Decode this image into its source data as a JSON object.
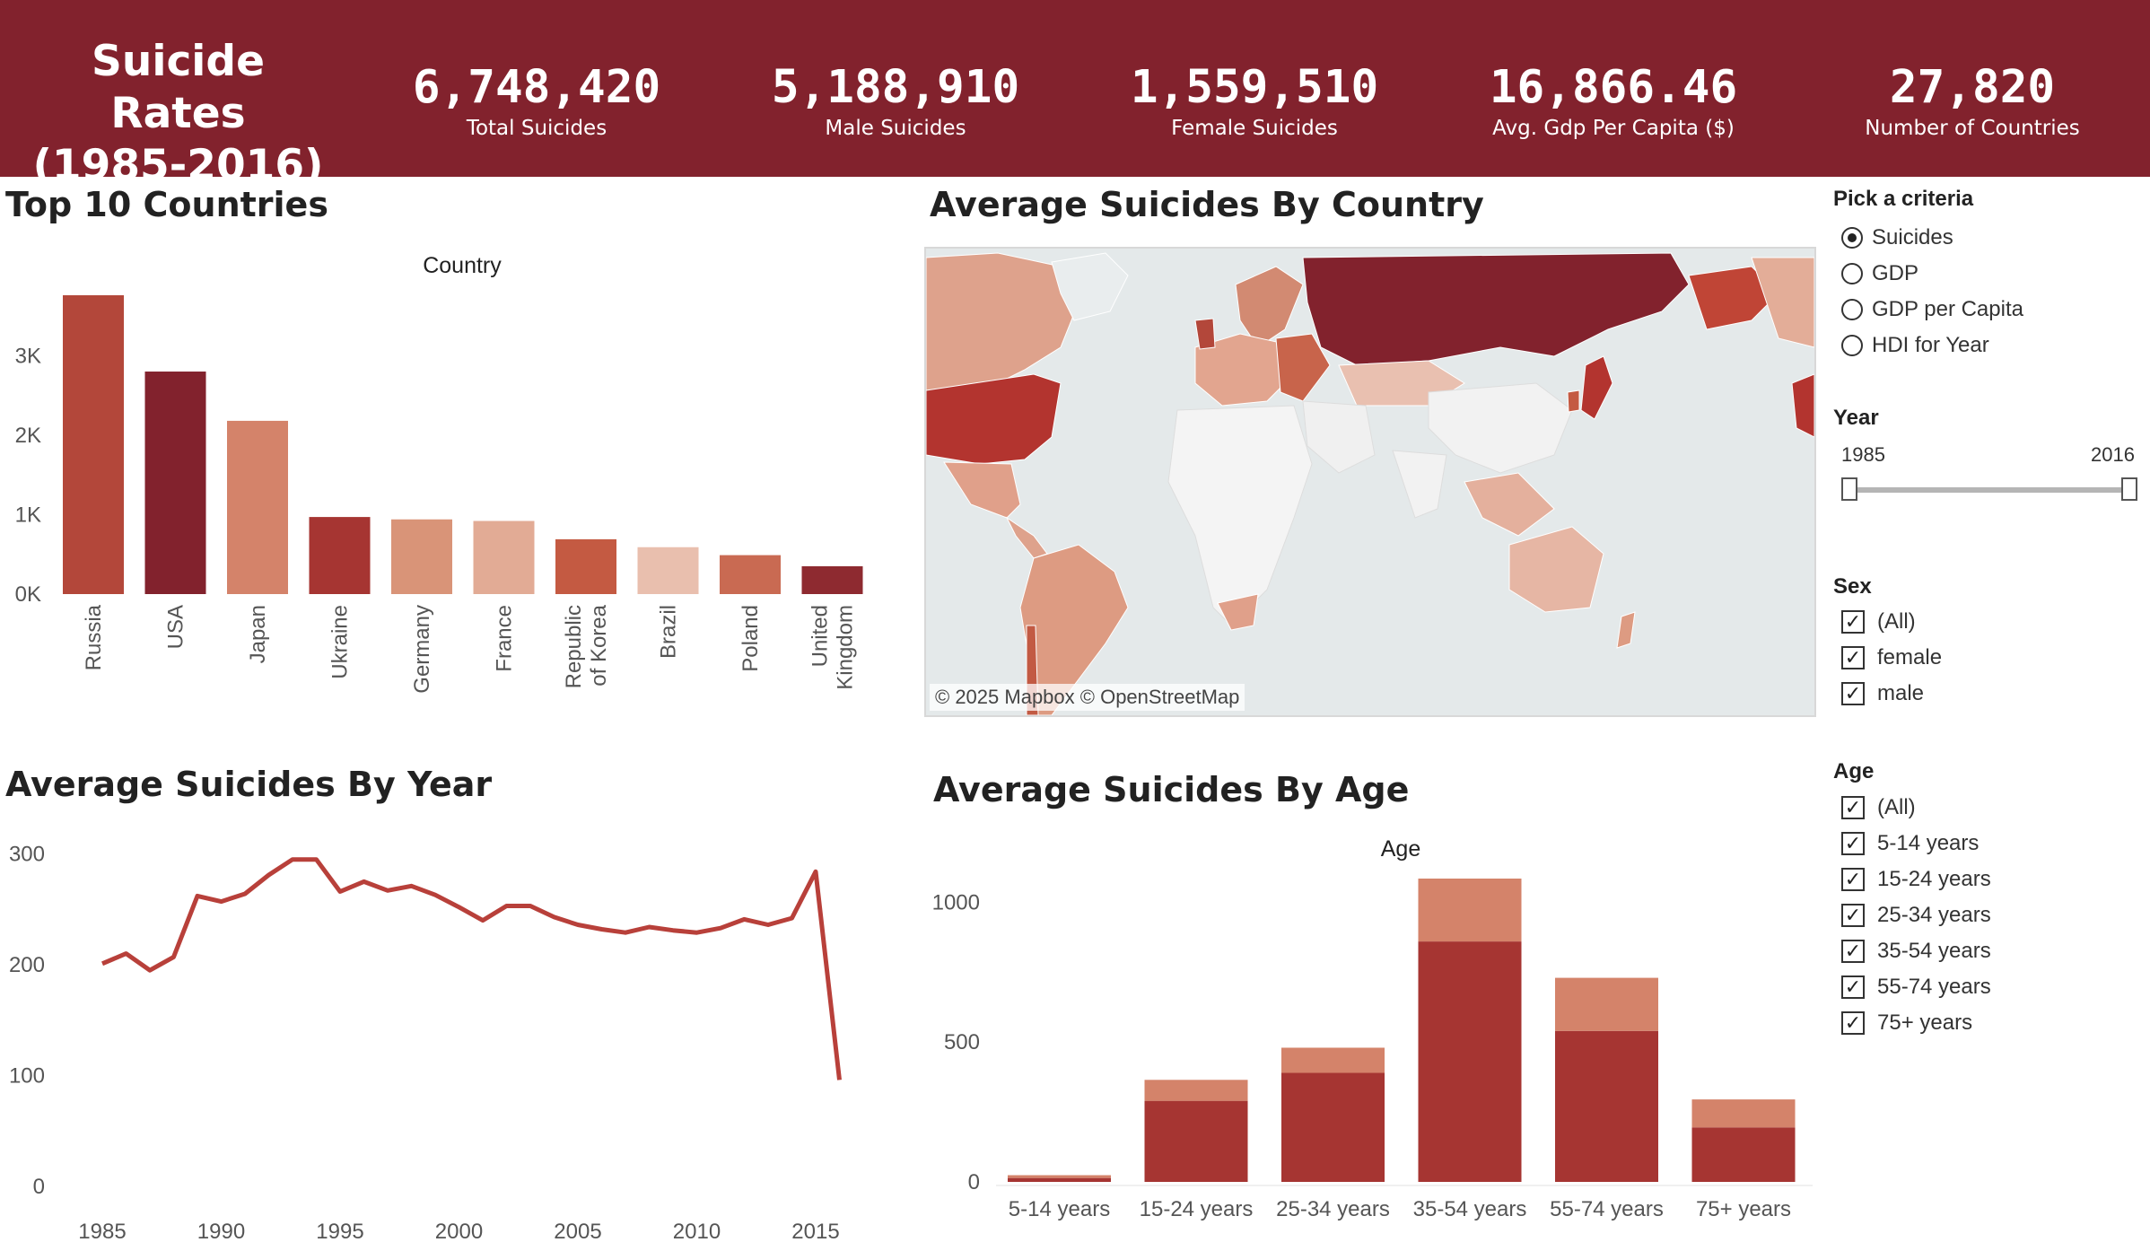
{
  "header": {
    "title_line1": "Suicide Rates",
    "title_line2": "(1985-2016)",
    "kpis": [
      {
        "value": "6,748,420",
        "label": "Total Suicides"
      },
      {
        "value": "5,188,910",
        "label": "Male Suicides"
      },
      {
        "value": "1,559,510",
        "label": "Female Suicides"
      },
      {
        "value": "16,866.46",
        "label": "Avg. Gdp Per Capita ($)"
      },
      {
        "value": "27,820",
        "label": "Number of Countries"
      }
    ]
  },
  "colors": {
    "header_bg": "#82222d",
    "dark_red": "#82222d",
    "red": "#a63532",
    "line": "#b8403a",
    "age_upper": "#d4836a"
  },
  "top10": {
    "title": "Top 10 Countries",
    "chart_data": {
      "type": "bar",
      "title": "Country",
      "categories": [
        "Russia",
        "USA",
        "Japan",
        "Ukraine",
        "Germany",
        "France",
        "Republic of Korea",
        "Brazil",
        "Poland",
        "United Kingdom"
      ],
      "category_lines": [
        [
          "Russia"
        ],
        [
          "USA"
        ],
        [
          "Japan"
        ],
        [
          "Ukraine"
        ],
        [
          "Germany"
        ],
        [
          "France"
        ],
        [
          "Republic",
          "of Korea"
        ],
        [
          "Brazil"
        ],
        [
          "Poland"
        ],
        [
          "United",
          "Kingdom"
        ]
      ],
      "values": [
        3760,
        2800,
        2180,
        970,
        940,
        920,
        690,
        590,
        490,
        350
      ],
      "colors": [
        "#b3473a",
        "#82222d",
        "#d4836a",
        "#a63532",
        "#d99478",
        "#e2ab95",
        "#c45a42",
        "#e9bfae",
        "#c96a52",
        "#8e2a30"
      ],
      "yticks": [
        0,
        1000,
        2000,
        3000
      ],
      "ytick_labels": [
        "0K",
        "1K",
        "2K",
        "3K"
      ]
    }
  },
  "map": {
    "title": "Average Suicides By Country",
    "attribution": "© 2025 Mapbox  © OpenStreetMap"
  },
  "by_year": {
    "title": "Average Suicides By Year",
    "chart_data": {
      "type": "line",
      "x": [
        1985,
        1986,
        1987,
        1988,
        1989,
        1990,
        1991,
        1992,
        1993,
        1994,
        1995,
        1996,
        1997,
        1998,
        1999,
        2000,
        2001,
        2002,
        2003,
        2004,
        2005,
        2006,
        2007,
        2008,
        2009,
        2010,
        2011,
        2012,
        2013,
        2014,
        2015,
        2016
      ],
      "y": [
        201,
        210,
        195,
        207,
        262,
        257,
        264,
        281,
        295,
        295,
        266,
        275,
        267,
        271,
        263,
        252,
        240,
        253,
        253,
        243,
        236,
        232,
        229,
        234,
        231,
        229,
        233,
        241,
        236,
        242,
        284,
        96
      ],
      "xticks": [
        1985,
        1990,
        1995,
        2000,
        2005,
        2010,
        2015
      ],
      "yticks": [
        0,
        100,
        200,
        300
      ],
      "xlim": [
        1984,
        2017
      ],
      "ylim": [
        0,
        300
      ]
    }
  },
  "by_age": {
    "title": "Average Suicides By Age",
    "chart_data": {
      "type": "bar",
      "title": "Age",
      "categories": [
        "5-14 years",
        "15-24 years",
        "25-34 years",
        "35-54 years",
        "55-74 years",
        "75+ years"
      ],
      "series": [
        {
          "values": [
            14,
            290,
            390,
            860,
            540,
            195
          ]
        },
        {
          "values": [
            10,
            75,
            90,
            225,
            190,
            100
          ]
        }
      ],
      "yticks": [
        0,
        500,
        1000
      ],
      "ylim": [
        0,
        1130
      ]
    }
  },
  "filters": {
    "criteria": {
      "heading": "Pick a criteria",
      "options": [
        "Suicides",
        "GDP",
        "GDP per Capita",
        "HDI for Year"
      ],
      "selected": "Suicides"
    },
    "year": {
      "heading": "Year",
      "min": "1985",
      "max": "2016",
      "start_fraction": 0,
      "end_fraction": 1
    },
    "sex": {
      "heading": "Sex",
      "options": [
        "(All)",
        "female",
        "male"
      ]
    },
    "age": {
      "heading": "Age",
      "options": [
        "(All)",
        "5-14 years",
        "15-24 years",
        "25-34 years",
        "35-54 years",
        "55-74 years",
        "75+ years"
      ]
    }
  }
}
